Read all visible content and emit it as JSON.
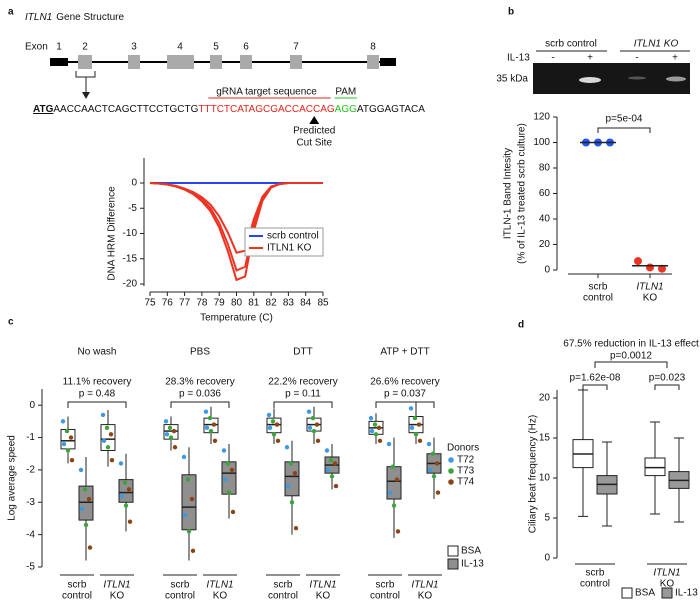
{
  "panel_labels": [
    "a",
    "b",
    "c",
    "d"
  ],
  "gene_structure": {
    "title_gene": "ITLN1",
    "title_rest": "Gene Structure",
    "exon_label": "Exon",
    "exons": [
      "1",
      "2",
      "3",
      "4",
      "5",
      "6",
      "7",
      "8"
    ],
    "sequence": {
      "start": "ATG",
      "pre": "AACCAACTCAGCTTCCTGCTG",
      "target": "TTTCTCATAGCGACCACCAG",
      "pam": "AGG",
      "post": "ATGGAGTACA"
    },
    "target_label": "gRNA target sequence",
    "pam_label": "PAM",
    "cut_site": [
      "Predicted",
      "Cut Site"
    ]
  },
  "gel": {
    "groups": [
      "scrb control",
      "ITLN1 KO"
    ],
    "treatment_label": "IL-13",
    "lanes": [
      "-",
      "+",
      "-",
      "+"
    ],
    "marker": "35 kDa"
  },
  "chart_data": [
    {
      "type": "line",
      "xlabel": "Temperature (C)",
      "ylabel": "DNA HRM Difference",
      "x": [
        75,
        75.5,
        76,
        76.5,
        77,
        77.5,
        78,
        78.5,
        79,
        79.5,
        80,
        80.5,
        81,
        81.5,
        82,
        82.5,
        83,
        83.5,
        84,
        84.5,
        85
      ],
      "xlim": [
        75,
        85
      ],
      "ylim": [
        -20,
        0
      ],
      "xticks": [
        75,
        76,
        77,
        78,
        79,
        80,
        81,
        82,
        83,
        84,
        85
      ],
      "yticks": [
        0,
        -5,
        -10,
        -15,
        -20
      ],
      "legend": "lower right",
      "series": [
        {
          "name": "scrb control",
          "color": "#2846f0",
          "values": [
            [
              0,
              0,
              0,
              0,
              0,
              0,
              0,
              0,
              0,
              0,
              0,
              0,
              0,
              0,
              0,
              0,
              0,
              0,
              0,
              0,
              0
            ]
          ]
        },
        {
          "name": "ITLN1 KO",
          "color": "#ee3322",
          "values": [
            [
              0,
              -0.1,
              -0.3,
              -0.7,
              -1.3,
              -2.2,
              -3.6,
              -5.6,
              -8.8,
              -13.5,
              -19.2,
              -18.5,
              -9.5,
              -3.5,
              -0.9,
              -0.2,
              0,
              0,
              0,
              0,
              0
            ],
            [
              0,
              -0.1,
              -0.3,
              -0.6,
              -1.2,
              -2,
              -3.2,
              -5,
              -7.9,
              -12.1,
              -17.3,
              -16.6,
              -8.5,
              -3.1,
              -0.8,
              -0.2,
              0,
              0,
              0,
              0,
              0
            ],
            [
              0,
              -0.1,
              -0.3,
              -0.6,
              -1.1,
              -1.8,
              -2.8,
              -4.3,
              -6.6,
              -9.8,
              -13.8,
              -13.4,
              -7.2,
              -2.7,
              -0.7,
              -0.2,
              0,
              0,
              0,
              0,
              0
            ]
          ]
        }
      ]
    },
    {
      "type": "dot",
      "ylabel": [
        "ITLN-1 Band Intesity",
        "(% of IL-13 treated scrb culture)"
      ],
      "categories": [
        [
          "scrb",
          "control"
        ],
        [
          "ITLN1",
          "KO"
        ]
      ],
      "colors": [
        "#2255ee",
        "#ee3322"
      ],
      "values": [
        [
          100,
          100,
          100
        ],
        [
          7,
          2,
          1
        ]
      ],
      "means": [
        100,
        3.3
      ],
      "ylim": [
        0,
        120
      ],
      "yticks": [
        0,
        20,
        40,
        60,
        80,
        100,
        120
      ],
      "annotation": "p=5e-04"
    },
    {
      "type": "box",
      "ylabel": "Log average speed",
      "ylim": [
        -5,
        0.5
      ],
      "yticks": [
        0,
        -1,
        -2,
        -3,
        -4,
        -5
      ],
      "categories": [
        [
          "scrb",
          "control"
        ],
        [
          "ITLN1",
          "KO"
        ]
      ],
      "legend": "lower right",
      "series": [
        {
          "name": "BSA",
          "color": "#ffffff"
        },
        {
          "name": "IL-13",
          "color": "#8f8f8f"
        }
      ],
      "donors": {
        "title": "Donors",
        "names": [
          "T72",
          "T73",
          "T74"
        ],
        "colors": [
          "#3b9ae1",
          "#3aa53a",
          "#8b4513"
        ]
      },
      "groups": [
        {
          "name": "No wash",
          "annotations": [
            "11.1% recovery",
            "p = 0.48"
          ],
          "boxes": [
            {
              "whislo": -1.8,
              "q1": -1.35,
              "med": -1.1,
              "q3": -0.75,
              "whishi": -0.35,
              "points": [
                -0.5,
                -0.8,
                -1.0,
                -1.2,
                -1.4,
                -1.7
              ]
            },
            {
              "whislo": -4.8,
              "q1": -3.55,
              "med": -3.0,
              "q3": -2.5,
              "whishi": -1.6,
              "points": [
                -2.0,
                -2.6,
                -2.9,
                -3.2,
                -3.7,
                -4.4
              ]
            },
            {
              "whislo": -1.9,
              "q1": -1.4,
              "med": -1.05,
              "q3": -0.6,
              "whishi": -0.15,
              "points": [
                -0.3,
                -0.7,
                -0.9,
                -1.1,
                -1.3,
                -1.7
              ]
            },
            {
              "whislo": -3.9,
              "q1": -3.0,
              "med": -2.7,
              "q3": -2.3,
              "whishi": -1.5,
              "points": [
                -1.8,
                -2.4,
                -2.6,
                -2.8,
                -3.1,
                -3.6
              ]
            }
          ]
        },
        {
          "name": "PBS",
          "annotations": [
            "28.3% recovery",
            "p = 0.036"
          ],
          "boxes": [
            {
              "whislo": -1.4,
              "q1": -1.05,
              "med": -0.8,
              "q3": -0.6,
              "whishi": -0.35,
              "points": [
                -0.5,
                -0.7,
                -0.8,
                -0.9,
                -1.0,
                -1.3
              ]
            },
            {
              "whislo": -4.8,
              "q1": -3.85,
              "med": -3.15,
              "q3": -2.15,
              "whishi": -1.3,
              "points": [
                -1.6,
                -2.3,
                -2.9,
                -3.4,
                -3.9,
                -4.5
              ]
            },
            {
              "whislo": -1.2,
              "q1": -0.85,
              "med": -0.6,
              "q3": -0.4,
              "whishi": -0.05,
              "points": [
                -0.2,
                -0.4,
                -0.6,
                -0.7,
                -0.8,
                -1.1
              ]
            },
            {
              "whislo": -3.5,
              "q1": -2.75,
              "med": -2.1,
              "q3": -1.75,
              "whishi": -1.2,
              "points": [
                -1.4,
                -1.8,
                -2.0,
                -2.3,
                -2.7,
                -3.3
              ]
            }
          ]
        },
        {
          "name": "DTT",
          "annotations": [
            "22.2% recovery",
            "p = 0.11"
          ],
          "boxes": [
            {
              "whislo": -1.2,
              "q1": -0.85,
              "med": -0.6,
              "q3": -0.4,
              "whishi": -0.1,
              "points": [
                -0.3,
                -0.5,
                -0.6,
                -0.7,
                -0.9,
                -1.1
              ]
            },
            {
              "whislo": -4.0,
              "q1": -2.8,
              "med": -2.2,
              "q3": -1.75,
              "whishi": -1.1,
              "points": [
                -1.3,
                -1.8,
                -2.1,
                -2.5,
                -3.0,
                -3.8
              ]
            },
            {
              "whislo": -1.2,
              "q1": -0.8,
              "med": -0.6,
              "q3": -0.4,
              "whishi": -0.05,
              "points": [
                -0.2,
                -0.4,
                -0.6,
                -0.7,
                -0.8,
                -1.1
              ]
            },
            {
              "whislo": -2.6,
              "q1": -2.1,
              "med": -1.85,
              "q3": -1.6,
              "whishi": -1.2,
              "points": [
                -1.4,
                -1.7,
                -1.8,
                -2.0,
                -2.2,
                -2.5
              ]
            }
          ]
        },
        {
          "name": "ATP + DTT",
          "annotations": [
            "26.6% recovery",
            "p = 0.037"
          ],
          "boxes": [
            {
              "whislo": -1.2,
              "q1": -0.9,
              "med": -0.7,
              "q3": -0.5,
              "whishi": -0.25,
              "points": [
                -0.4,
                -0.6,
                -0.7,
                -0.8,
                -0.9,
                -1.1
              ]
            },
            {
              "whislo": -4.1,
              "q1": -2.9,
              "med": -2.35,
              "q3": -1.9,
              "whishi": -1.0,
              "points": [
                -1.2,
                -1.9,
                -2.3,
                -2.7,
                -3.1,
                -3.9
              ]
            },
            {
              "whislo": -1.2,
              "q1": -0.85,
              "med": -0.6,
              "q3": -0.35,
              "whishi": 0.1,
              "points": [
                -0.1,
                -0.4,
                -0.6,
                -0.7,
                -0.9,
                -1.1
              ]
            },
            {
              "whislo": -2.9,
              "q1": -2.1,
              "med": -1.8,
              "q3": -1.5,
              "whishi": -1.0,
              "points": [
                -1.2,
                -1.5,
                -1.8,
                -2.0,
                -2.2,
                -2.7
              ]
            }
          ]
        }
      ]
    },
    {
      "type": "box",
      "title": "67.5% reduction in IL-13 effect",
      "annotation": "p=0.0012",
      "ylabel": "Ciliary beat frequency (Hz)",
      "ylim": [
        0,
        21
      ],
      "yticks": [
        0,
        5,
        10,
        15,
        20
      ],
      "categories": [
        [
          "scrb",
          "control"
        ],
        [
          "ITLN1",
          "KO"
        ]
      ],
      "legend": "lower right",
      "series": [
        {
          "name": "BSA",
          "color": "#ffffff"
        },
        {
          "name": "IL-13",
          "color": "#999999"
        }
      ],
      "groups": [
        {
          "annotation": "p=1.62e-08",
          "boxes": [
            {
              "whislo": 5.2,
              "q1": 11.3,
              "med": 13,
              "q3": 14.8,
              "whishi": 21
            },
            {
              "whislo": 4,
              "q1": 8,
              "med": 9.2,
              "q3": 10.3,
              "whishi": 14.5
            }
          ]
        },
        {
          "annotation": "p=0.023",
          "boxes": [
            {
              "whislo": 5.5,
              "q1": 10.3,
              "med": 11.3,
              "q3": 12.5,
              "whishi": 17
            },
            {
              "whislo": 4.5,
              "q1": 8.7,
              "med": 9.7,
              "q3": 10.8,
              "whishi": 15
            }
          ]
        }
      ]
    }
  ]
}
